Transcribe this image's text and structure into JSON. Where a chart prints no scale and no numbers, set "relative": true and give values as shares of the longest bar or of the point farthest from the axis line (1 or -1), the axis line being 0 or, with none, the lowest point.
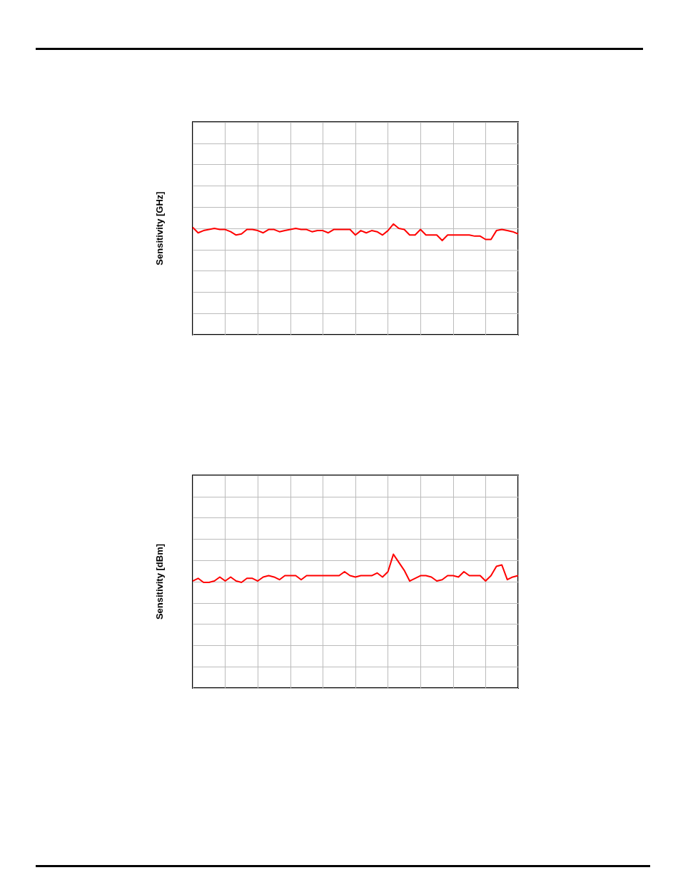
{
  "chart_data": [
    {
      "type": "line",
      "ylabel": "Sensitivity [GHz]",
      "relative": true,
      "grid": true,
      "line_style": "solid",
      "categories": [
        null,
        null,
        null,
        null,
        null,
        null,
        null,
        null,
        null,
        null,
        null,
        null,
        null,
        null,
        null,
        null,
        null,
        null,
        null,
        null,
        null,
        null,
        null,
        null,
        null,
        null,
        null,
        null,
        null,
        null,
        null,
        null,
        null,
        null,
        null,
        null,
        null,
        null,
        null,
        null,
        null,
        null,
        null,
        null,
        null,
        null,
        null,
        null,
        null,
        null,
        null,
        null,
        null,
        null,
        null,
        null,
        null,
        null,
        null,
        null,
        null
      ],
      "series": [
        {
          "color": "#ff0000",
          "values": [
            0.97,
            0.92,
            0.94,
            0.95,
            0.96,
            0.95,
            0.95,
            0.93,
            0.9,
            0.91,
            0.95,
            0.95,
            0.94,
            0.92,
            0.95,
            0.95,
            0.93,
            0.94,
            0.95,
            0.96,
            0.95,
            0.95,
            0.93,
            0.94,
            0.94,
            0.92,
            0.95,
            0.95,
            0.95,
            0.95,
            0.9,
            0.94,
            0.92,
            0.94,
            0.93,
            0.9,
            0.94,
            1.0,
            0.96,
            0.95,
            0.9,
            0.9,
            0.95,
            0.9,
            0.9,
            0.9,
            0.85,
            0.9,
            0.9,
            0.9,
            0.9,
            0.9,
            0.89,
            0.89,
            0.86,
            0.86,
            0.94,
            0.95,
            0.94,
            0.93,
            0.91
          ]
        }
      ]
    },
    {
      "type": "line",
      "ylabel": "Sensitivity [dBm]",
      "relative": true,
      "grid": true,
      "line_style": "solid",
      "categories": [
        null,
        null,
        null,
        null,
        null,
        null,
        null,
        null,
        null,
        null,
        null,
        null,
        null,
        null,
        null,
        null,
        null,
        null,
        null,
        null,
        null,
        null,
        null,
        null,
        null,
        null,
        null,
        null,
        null,
        null,
        null,
        null,
        null,
        null,
        null,
        null,
        null,
        null,
        null,
        null,
        null,
        null,
        null,
        null,
        null,
        null,
        null,
        null,
        null,
        null,
        null,
        null,
        null,
        null,
        null,
        null,
        null,
        null,
        null,
        null,
        null
      ],
      "series": [
        {
          "color": "#ff0000",
          "values": [
            0.8,
            0.82,
            0.79,
            0.79,
            0.8,
            0.83,
            0.8,
            0.83,
            0.8,
            0.79,
            0.82,
            0.82,
            0.8,
            0.83,
            0.84,
            0.83,
            0.81,
            0.84,
            0.84,
            0.84,
            0.81,
            0.84,
            0.84,
            0.84,
            0.84,
            0.84,
            0.84,
            0.84,
            0.87,
            0.84,
            0.83,
            0.84,
            0.84,
            0.84,
            0.86,
            0.83,
            0.87,
            1.0,
            0.94,
            0.88,
            0.8,
            0.82,
            0.84,
            0.84,
            0.83,
            0.8,
            0.81,
            0.84,
            0.84,
            0.83,
            0.87,
            0.84,
            0.84,
            0.84,
            0.8,
            0.84,
            0.91,
            0.92,
            0.81,
            0.83,
            0.84
          ]
        }
      ]
    }
  ]
}
